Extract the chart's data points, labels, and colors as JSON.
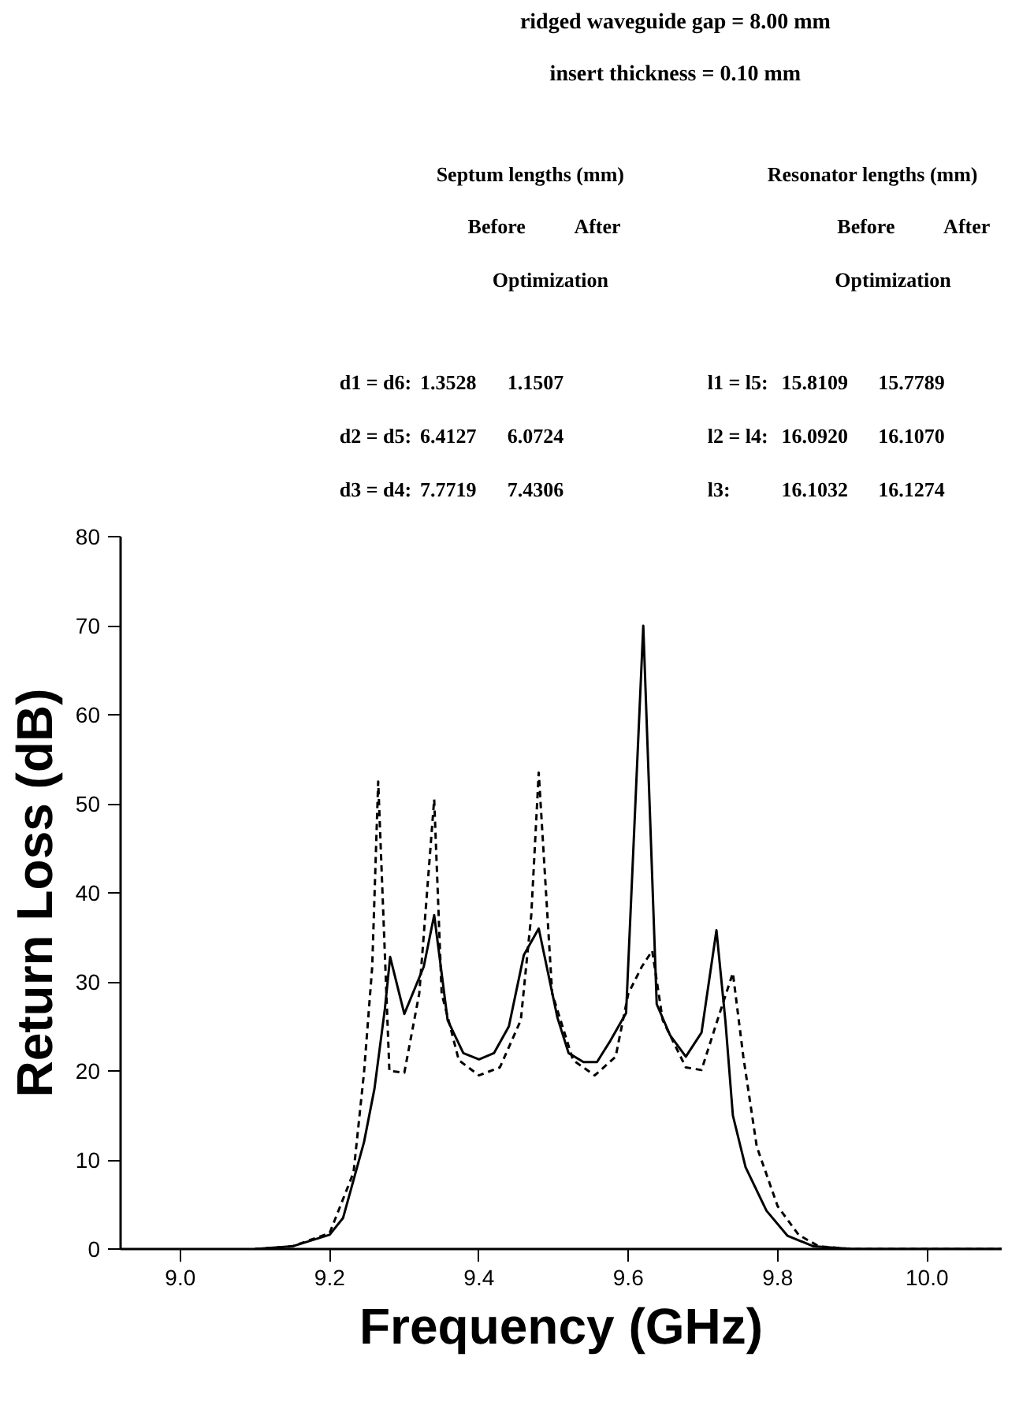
{
  "chart_data": {
    "type": "line",
    "title": "ridged waveguide gap = 8.00 mm",
    "subtitle": "insert thickness = 0.10 mm",
    "xlabel": "Frequency (GHz)",
    "ylabel": "Return Loss (dB)",
    "annotations": [
      "Septum lengths (mm)",
      "Before      After",
      "Optimization",
      "d1 = d6:    1.3528     1.1507",
      "d2 = d5:    6.4127     6.0724",
      "d3 = d4:    7.7719     7.4306",
      "Resonator lengths (mm)",
      "Before      After",
      "Optimization",
      "l1 = l5:  15.8109   15.7789",
      "l2 = l4:  16.0920   16.1070",
      "l3:         16.1032   16.1274"
    ],
    "xlim": [
      8.92,
      10.1
    ],
    "ylim": [
      0,
      80
    ],
    "xticks": [
      {
        "value": 9.0,
        "label": "9.0"
      },
      9.2,
      9.4,
      9.6,
      9.8,
      {
        "value": 10.0,
        "label": "10.0"
      }
    ],
    "yticks": [
      0,
      10,
      20,
      30,
      40,
      50,
      60,
      70,
      80
    ],
    "grid": false,
    "marker": "none",
    "series": [
      {
        "color": "#000000",
        "line_style": "solid",
        "x": [
          9.1,
          9.15,
          9.2,
          9.218,
          9.246,
          9.26,
          9.274,
          9.281,
          9.3,
          9.326,
          9.34,
          9.358,
          9.379,
          9.4,
          9.42,
          9.44,
          9.46,
          9.48,
          9.505,
          9.52,
          9.54,
          9.558,
          9.576,
          9.597,
          9.62,
          9.638,
          9.656,
          9.677,
          9.698,
          9.718,
          9.73,
          9.74,
          9.757,
          9.785,
          9.813,
          9.848,
          9.9,
          10.1
        ],
        "values": [
          0,
          0.3,
          1.6,
          3.5,
          12,
          18,
          27,
          32.8,
          26.4,
          31.7,
          37.5,
          25.7,
          22,
          21.3,
          22,
          25,
          33,
          36,
          26,
          22,
          21,
          21,
          23.4,
          26.5,
          70,
          27.5,
          24,
          21.6,
          24.3,
          35.8,
          25.6,
          15,
          9.2,
          4.3,
          1.5,
          0.3,
          0,
          0
        ]
      },
      {
        "color": "#000000",
        "line_style": "dashed",
        "x": [
          9.1,
          9.15,
          9.2,
          9.232,
          9.246,
          9.257,
          9.265,
          9.28,
          9.3,
          9.32,
          9.34,
          9.35,
          9.373,
          9.4,
          9.428,
          9.456,
          9.47,
          9.48,
          9.498,
          9.526,
          9.555,
          9.583,
          9.6,
          9.618,
          9.632,
          9.646,
          9.677,
          9.698,
          9.722,
          9.74,
          9.754,
          9.772,
          9.8,
          9.828,
          9.855,
          9.9,
          10.1
        ],
        "values": [
          0,
          0.3,
          1.8,
          8.6,
          19.8,
          31.7,
          52.5,
          20,
          19.8,
          28.7,
          50.5,
          28.7,
          21.2,
          19.5,
          20.4,
          25.7,
          37.5,
          53.5,
          28.7,
          21.2,
          19.5,
          21.6,
          28.7,
          31.7,
          33.5,
          25.7,
          20.4,
          20.1,
          26.4,
          31,
          21.6,
          11.5,
          4.8,
          1.6,
          0.3,
          0,
          0
        ]
      }
    ]
  }
}
